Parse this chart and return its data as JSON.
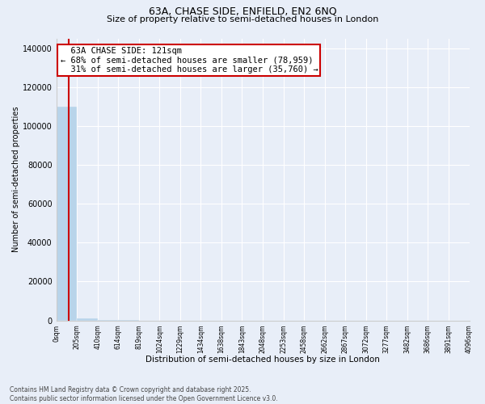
{
  "title": "63A, CHASE SIDE, ENFIELD, EN2 6NQ",
  "subtitle": "Size of property relative to semi-detached houses in London",
  "xlabel": "Distribution of semi-detached houses by size in London",
  "ylabel": "Number of semi-detached properties",
  "property_size": 121,
  "pct_smaller": 68,
  "pct_larger": 31,
  "count_smaller": 78959,
  "count_larger": 35760,
  "annotation_label": "63A CHASE SIDE: 121sqm",
  "bar_color": "#b8d4ea",
  "background_color": "#e8eef8",
  "bin_edges": [
    0,
    205,
    410,
    614,
    819,
    1024,
    1229,
    1434,
    1638,
    1843,
    2048,
    2253,
    2458,
    2662,
    2867,
    3072,
    3277,
    3482,
    3686,
    3891,
    4096
  ],
  "bin_labels": [
    "0sqm",
    "205sqm",
    "410sqm",
    "614sqm",
    "819sqm",
    "1024sqm",
    "1229sqm",
    "1434sqm",
    "1638sqm",
    "1843sqm",
    "2048sqm",
    "2253sqm",
    "2458sqm",
    "2662sqm",
    "2867sqm",
    "3072sqm",
    "3277sqm",
    "3482sqm",
    "3686sqm",
    "3891sqm",
    "4096sqm"
  ],
  "bar_heights": [
    110000,
    1200,
    200,
    80,
    40,
    20,
    10,
    8,
    5,
    4,
    3,
    2,
    2,
    1,
    1,
    1,
    1,
    1,
    0,
    0
  ],
  "ylim": [
    0,
    145000
  ],
  "yticks": [
    0,
    20000,
    40000,
    60000,
    80000,
    100000,
    120000,
    140000
  ],
  "copyright_text": "Contains HM Land Registry data © Crown copyright and database right 2025.\nContains public sector information licensed under the Open Government Licence v3.0.",
  "annotation_box_color": "#ffffff",
  "annotation_box_edgecolor": "#cc0000",
  "vline_color": "#cc0000",
  "grid_color": "#ffffff",
  "title_fontsize": 9,
  "subtitle_fontsize": 8
}
